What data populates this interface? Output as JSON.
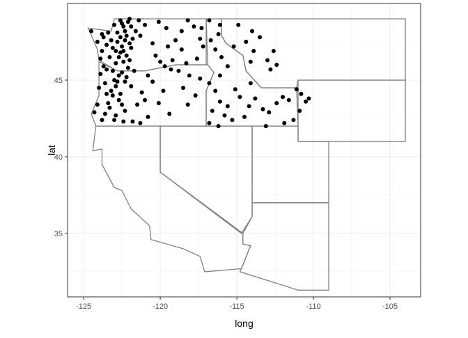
{
  "chart_data": {
    "type": "scatter",
    "xlabel": "long",
    "ylabel": "lat",
    "xlim": [
      -126.05,
      -103.0
    ],
    "ylim": [
      30.86,
      50.0
    ],
    "x_ticks": [
      -125,
      -120,
      -115,
      -110,
      -105
    ],
    "y_ticks": [
      35,
      40,
      45
    ],
    "x_tick_labels": [
      "-125",
      "-120",
      "-115",
      "-110",
      "-105"
    ],
    "y_tick_labels": [
      "35",
      "40",
      "45"
    ],
    "grid": true,
    "theme": "bw",
    "colors": {
      "points": "#000000",
      "state_borders": "#7f7f7f",
      "grid": "#ebebeb",
      "panel_border": "#333333"
    },
    "state_outlines": [
      [
        [
          -124.7,
          48.4
        ],
        [
          -123.2,
          48.2
        ],
        [
          -123,
          49
        ],
        [
          -117,
          49
        ],
        [
          -117,
          46
        ],
        [
          -116.9,
          46
        ],
        [
          -119,
          46
        ],
        [
          -121,
          45.6
        ],
        [
          -122.8,
          45.6
        ],
        [
          -124,
          46.3
        ],
        [
          -124.1,
          47
        ],
        [
          -124.7,
          48.4
        ]
      ],
      [
        [
          -124,
          46.2
        ],
        [
          -122.8,
          45.6
        ],
        [
          -121,
          45.6
        ],
        [
          -119,
          46
        ],
        [
          -116.9,
          46
        ],
        [
          -116.5,
          45.5
        ],
        [
          -117,
          44.3
        ],
        [
          -117,
          42
        ],
        [
          -124.2,
          42
        ],
        [
          -124.5,
          42.8
        ],
        [
          -124,
          44
        ],
        [
          -124,
          46.2
        ]
      ],
      [
        [
          -124.2,
          42
        ],
        [
          -120,
          42
        ],
        [
          -120,
          39
        ],
        [
          -114.6,
          35
        ],
        [
          -114.6,
          34.3
        ],
        [
          -114.1,
          34.2
        ],
        [
          -114.7,
          32.7
        ],
        [
          -117.1,
          32.5
        ],
        [
          -117.4,
          33.5
        ],
        [
          -118.5,
          34
        ],
        [
          -120.6,
          34.6
        ],
        [
          -120.7,
          35.5
        ],
        [
          -121.9,
          36.6
        ],
        [
          -122.5,
          37.8
        ],
        [
          -123,
          38
        ],
        [
          -123.8,
          39.5
        ],
        [
          -123.8,
          40.5
        ],
        [
          -124.4,
          40.4
        ],
        [
          -124.2,
          42
        ]
      ],
      [
        [
          -120,
          42
        ],
        [
          -114,
          42
        ],
        [
          -114,
          36.1
        ],
        [
          -114.7,
          35.0
        ],
        [
          -120,
          39
        ],
        [
          -120,
          42
        ]
      ],
      [
        [
          -117,
          49
        ],
        [
          -116,
          49
        ],
        [
          -116,
          47.9
        ],
        [
          -115.7,
          47.4
        ],
        [
          -114.6,
          46.6
        ],
        [
          -114.4,
          45.6
        ],
        [
          -113.4,
          44.5
        ],
        [
          -112.3,
          44.5
        ],
        [
          -111.1,
          44.5
        ],
        [
          -111,
          42
        ],
        [
          -117,
          42
        ],
        [
          -117,
          44.3
        ],
        [
          -116.5,
          45.5
        ],
        [
          -116.9,
          46
        ],
        [
          -117,
          49
        ]
      ],
      [
        [
          -116,
          49
        ],
        [
          -104,
          49
        ],
        [
          -104,
          45
        ],
        [
          -111,
          45
        ],
        [
          -111.1,
          44.5
        ],
        [
          -112.3,
          44.5
        ],
        [
          -113.4,
          44.5
        ],
        [
          -114.4,
          45.6
        ],
        [
          -114.6,
          46.6
        ],
        [
          -115.7,
          47.4
        ],
        [
          -116,
          47.9
        ],
        [
          -116,
          49
        ]
      ],
      [
        [
          -111,
          45
        ],
        [
          -104,
          45
        ],
        [
          -104,
          41
        ],
        [
          -111,
          41
        ],
        [
          -111,
          45
        ]
      ],
      [
        [
          -114,
          42
        ],
        [
          -111,
          42
        ],
        [
          -111,
          41
        ],
        [
          -109,
          41
        ],
        [
          -109,
          37
        ],
        [
          -114,
          37
        ],
        [
          -114,
          42
        ]
      ],
      [
        [
          -114,
          37
        ],
        [
          -109,
          37
        ],
        [
          -109,
          31.3
        ],
        [
          -111,
          31.3
        ],
        [
          -114.8,
          32.5
        ],
        [
          -114.7,
          32.7
        ],
        [
          -114.1,
          34.2
        ],
        [
          -114.6,
          34.3
        ],
        [
          -114.6,
          35
        ],
        [
          -114,
          36.1
        ],
        [
          -114,
          37
        ]
      ]
    ],
    "points": [
      [
        -122.3,
        47.6
      ],
      [
        -122.5,
        47.2
      ],
      [
        -122.2,
        47.9
      ],
      [
        -122.8,
        48.1
      ],
      [
        -122.4,
        48.5
      ],
      [
        -122.1,
        48.8
      ],
      [
        -122.6,
        48.9
      ],
      [
        -123.1,
        47.1
      ],
      [
        -122.9,
        46.9
      ],
      [
        -123.5,
        47.3
      ],
      [
        -124.1,
        47.5
      ],
      [
        -124.5,
        48.2
      ],
      [
        -123.8,
        48.0
      ],
      [
        -123.4,
        48.1
      ],
      [
        -122.0,
        47.4
      ],
      [
        -121.8,
        47.7
      ],
      [
        -121.6,
        48.2
      ],
      [
        -122.7,
        46.5
      ],
      [
        -122.9,
        46.1
      ],
      [
        -123.8,
        46.9
      ],
      [
        -123.9,
        46.4
      ],
      [
        -122.5,
        45.5
      ],
      [
        -122.7,
        45.3
      ],
      [
        -123.0,
        45.0
      ],
      [
        -122.9,
        44.6
      ],
      [
        -123.2,
        44.3
      ],
      [
        -123.1,
        44.0
      ],
      [
        -122.6,
        44.1
      ],
      [
        -123.4,
        43.5
      ],
      [
        -123.3,
        43.2
      ],
      [
        -122.9,
        42.7
      ],
      [
        -122.4,
        42.3
      ],
      [
        -123.8,
        42.4
      ],
      [
        -124.3,
        42.9
      ],
      [
        -124.1,
        43.4
      ],
      [
        -124.0,
        44.5
      ],
      [
        -123.9,
        45.4
      ],
      [
        -123.7,
        45.9
      ],
      [
        -123.6,
        44.8
      ],
      [
        -122.1,
        45.8
      ],
      [
        -121.7,
        45.6
      ],
      [
        -121.2,
        44.2
      ],
      [
        -121.5,
        43.4
      ],
      [
        -121.8,
        42.3
      ],
      [
        -122.2,
        46.6
      ],
      [
        -122.4,
        46.9
      ],
      [
        -123.2,
        47.6
      ],
      [
        -122.3,
        48.2
      ],
      [
        -121.9,
        48.5
      ],
      [
        -122.6,
        47.8
      ],
      [
        -123.0,
        48.6
      ],
      [
        -122.0,
        49.0
      ],
      [
        -121.4,
        48.9
      ],
      [
        -121.0,
        48.6
      ],
      [
        -121.3,
        47.9
      ],
      [
        -122.0,
        46.3
      ],
      [
        -123.3,
        46.5
      ],
      [
        -123.5,
        45.7
      ],
      [
        -122.3,
        44.9
      ],
      [
        -121.9,
        44.6
      ],
      [
        -122.7,
        43.7
      ],
      [
        -122.3,
        43.0
      ],
      [
        -123.6,
        42.8
      ],
      [
        -121.3,
        42.2
      ],
      [
        -120.8,
        42.6
      ],
      [
        -122.5,
        48.7
      ],
      [
        -122.8,
        47.5
      ],
      [
        -122.4,
        46.2
      ],
      [
        -123.1,
        45.6
      ],
      [
        -122.8,
        44.9
      ],
      [
        -123.5,
        44.1
      ],
      [
        -122.5,
        43.4
      ],
      [
        -123.0,
        42.4
      ],
      [
        -122.2,
        45.2
      ],
      [
        -122.6,
        46.8
      ],
      [
        -121.9,
        47.1
      ],
      [
        -123.7,
        47.8
      ],
      [
        -120.5,
        47.4
      ],
      [
        -120.3,
        46.6
      ],
      [
        -119.5,
        47.2
      ],
      [
        -119.2,
        46.3
      ],
      [
        -118.3,
        46.1
      ],
      [
        -117.4,
        47.7
      ],
      [
        -117.2,
        47.2
      ],
      [
        -117.8,
        48.5
      ],
      [
        -118.6,
        48.2
      ],
      [
        -119.6,
        48.4
      ],
      [
        -120.1,
        48.8
      ],
      [
        -118.2,
        48.9
      ],
      [
        -119.0,
        47.6
      ],
      [
        -118.6,
        47.0
      ],
      [
        -117.6,
        46.4
      ],
      [
        -120.0,
        46.2
      ],
      [
        -117.3,
        48.4
      ],
      [
        -119.7,
        45.9
      ],
      [
        -120.8,
        45.3
      ],
      [
        -119.3,
        45.7
      ],
      [
        -118.8,
        45.6
      ],
      [
        -118.1,
        45.3
      ],
      [
        -117.4,
        45.1
      ],
      [
        -118.5,
        44.5
      ],
      [
        -119.8,
        44.3
      ],
      [
        -120.1,
        43.5
      ],
      [
        -119.4,
        42.8
      ],
      [
        -118.2,
        43.4
      ],
      [
        -117.7,
        44.0
      ],
      [
        -120.5,
        44.9
      ],
      [
        -121.0,
        43.7
      ],
      [
        -116.8,
        48.9
      ],
      [
        -116.1,
        48.6
      ],
      [
        -116.2,
        48.0
      ],
      [
        -116.7,
        47.6
      ],
      [
        -116.4,
        47.0
      ],
      [
        -116.0,
        46.5
      ],
      [
        -115.6,
        45.9
      ],
      [
        -116.1,
        45.3
      ],
      [
        -114.0,
        48.2
      ],
      [
        -114.9,
        48.6
      ],
      [
        -114.4,
        47.5
      ],
      [
        -113.9,
        46.9
      ],
      [
        -113.0,
        46.3
      ],
      [
        -112.6,
        46.9
      ],
      [
        -112.4,
        46.0
      ],
      [
        -114.1,
        46.2
      ],
      [
        -115.2,
        47.2
      ],
      [
        -113.5,
        47.8
      ],
      [
        -112.8,
        45.7
      ],
      [
        -116.4,
        44.3
      ],
      [
        -116.1,
        43.6
      ],
      [
        -115.8,
        42.7
      ],
      [
        -115.3,
        42.4
      ],
      [
        -114.5,
        42.6
      ],
      [
        -114.2,
        43.3
      ],
      [
        -113.8,
        43.8
      ],
      [
        -113.3,
        43.1
      ],
      [
        -112.9,
        42.9
      ],
      [
        -112.4,
        43.5
      ],
      [
        -112.0,
        43.9
      ],
      [
        -111.6,
        43.7
      ],
      [
        -111.3,
        42.4
      ],
      [
        -111.9,
        42.2
      ],
      [
        -113.1,
        42.0
      ],
      [
        -114.8,
        43.9
      ],
      [
        -115.1,
        44.4
      ],
      [
        -115.6,
        43.3
      ],
      [
        -116.6,
        43.0
      ],
      [
        -116.8,
        42.2
      ],
      [
        -116.2,
        42.0
      ],
      [
        -110.5,
        43.6
      ],
      [
        -110.8,
        44.1
      ],
      [
        -110.3,
        43.8
      ],
      [
        -110.9,
        43.0
      ],
      [
        -111.1,
        44.4
      ],
      [
        -116.8,
        44.8
      ],
      [
        -114.1,
        44.8
      ]
    ]
  }
}
